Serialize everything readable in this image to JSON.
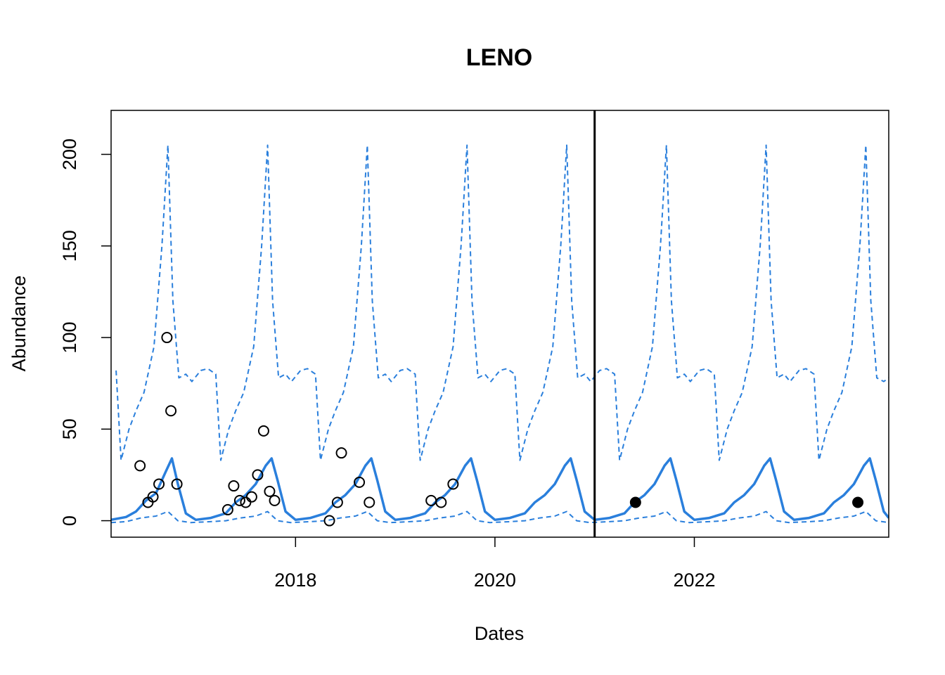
{
  "chart_data": {
    "type": "line",
    "title": "LENO",
    "xlabel": "Dates",
    "ylabel": "Abundance",
    "xlim": [
      2016.15,
      2023.95
    ],
    "ylim": [
      -9,
      224
    ],
    "x_ticks": [
      2018,
      2020,
      2022
    ],
    "x_tick_labels": [
      "2018",
      "2020",
      "2022"
    ],
    "y_ticks": [
      0,
      50,
      100,
      150,
      200
    ],
    "y_tick_labels": [
      "0",
      "50",
      "100",
      "150",
      "200"
    ],
    "grid": false,
    "legend": "none",
    "forecast_start": 2021.0,
    "colors": {
      "series": "#2a7fdc",
      "points": "#000000"
    },
    "series": [
      {
        "role": "mean",
        "style": "solid",
        "x": [
          2016.15,
          2016.3,
          2016.4,
          2016.5,
          2016.6,
          2016.7,
          2016.76,
          2016.82,
          2016.9,
          2017.0,
          2017.15,
          2017.3,
          2017.4,
          2017.5,
          2017.6,
          2017.7,
          2017.76,
          2017.82,
          2017.9,
          2018.0,
          2018.15,
          2018.3,
          2018.4,
          2018.5,
          2018.6,
          2018.7,
          2018.76,
          2018.82,
          2018.9,
          2019.0,
          2019.15,
          2019.3,
          2019.4,
          2019.5,
          2019.6,
          2019.7,
          2019.76,
          2019.82,
          2019.9,
          2020.0,
          2020.15,
          2020.3,
          2020.4,
          2020.5,
          2020.6,
          2020.7,
          2020.76,
          2020.82,
          2020.9,
          2021.0,
          2021.15,
          2021.3,
          2021.4,
          2021.5,
          2021.6,
          2021.7,
          2021.76,
          2021.82,
          2021.9,
          2022.0,
          2022.15,
          2022.3,
          2022.4,
          2022.5,
          2022.6,
          2022.7,
          2022.76,
          2022.82,
          2022.9,
          2023.0,
          2023.15,
          2023.3,
          2023.4,
          2023.5,
          2023.6,
          2023.7,
          2023.76,
          2023.82,
          2023.9,
          2023.95
        ],
        "y": [
          0.5,
          2,
          5,
          11,
          15,
          27,
          34,
          20,
          4,
          0.5,
          1.5,
          4,
          10,
          14,
          20,
          30,
          34,
          22,
          5,
          0.5,
          1.5,
          4,
          10,
          14,
          20,
          30,
          34,
          22,
          5,
          0.5,
          1.5,
          4,
          10,
          14,
          20,
          30,
          34,
          22,
          5,
          0.5,
          1.5,
          4,
          10,
          14,
          20,
          30,
          34,
          22,
          5,
          0.5,
          1.5,
          4,
          10,
          14,
          20,
          30,
          34,
          22,
          5,
          0.5,
          1.5,
          4,
          10,
          14,
          20,
          30,
          34,
          22,
          5,
          0.5,
          1.5,
          4,
          10,
          14,
          20,
          30,
          34,
          22,
          5,
          1.5
        ]
      },
      {
        "role": "upper",
        "style": "dashed",
        "x": [
          2016.2,
          2016.25,
          2016.33,
          2016.4,
          2016.48,
          2016.58,
          2016.66,
          2016.72,
          2016.77,
          2016.83,
          2016.9,
          2016.96,
          2017.05,
          2017.12,
          2017.2,
          2017.25,
          2017.33,
          2017.4,
          2017.48,
          2017.58,
          2017.66,
          2017.72,
          2017.77,
          2017.83,
          2017.9,
          2017.96,
          2018.05,
          2018.12,
          2018.2,
          2018.25,
          2018.33,
          2018.4,
          2018.48,
          2018.58,
          2018.66,
          2018.72,
          2018.77,
          2018.83,
          2018.9,
          2018.96,
          2019.05,
          2019.12,
          2019.2,
          2019.25,
          2019.33,
          2019.4,
          2019.48,
          2019.58,
          2019.66,
          2019.72,
          2019.77,
          2019.83,
          2019.9,
          2019.96,
          2020.05,
          2020.12,
          2020.2,
          2020.25,
          2020.33,
          2020.4,
          2020.48,
          2020.58,
          2020.66,
          2020.72,
          2020.77,
          2020.83,
          2020.9,
          2020.96,
          2021.05,
          2021.12,
          2021.2,
          2021.25,
          2021.33,
          2021.4,
          2021.48,
          2021.58,
          2021.66,
          2021.72,
          2021.77,
          2021.83,
          2021.9,
          2021.96,
          2022.05,
          2022.12,
          2022.2,
          2022.25,
          2022.33,
          2022.4,
          2022.48,
          2022.58,
          2022.66,
          2022.72,
          2022.77,
          2022.83,
          2022.9,
          2022.96,
          2023.05,
          2023.12,
          2023.2,
          2023.25,
          2023.33,
          2023.4,
          2023.48,
          2023.58,
          2023.66,
          2023.72,
          2023.77,
          2023.83,
          2023.9,
          2023.95
        ],
        "y": [
          82,
          33,
          50,
          60,
          70,
          95,
          150,
          205,
          120,
          78,
          80,
          76,
          82,
          83,
          80,
          33,
          50,
          60,
          70,
          95,
          150,
          205,
          120,
          78,
          80,
          76,
          82,
          83,
          80,
          33,
          50,
          60,
          70,
          95,
          150,
          205,
          120,
          78,
          80,
          76,
          82,
          83,
          80,
          33,
          50,
          60,
          70,
          95,
          150,
          205,
          120,
          78,
          80,
          76,
          82,
          83,
          80,
          33,
          50,
          60,
          70,
          95,
          150,
          205,
          120,
          78,
          80,
          76,
          82,
          83,
          80,
          33,
          50,
          60,
          70,
          95,
          150,
          205,
          120,
          78,
          80,
          76,
          82,
          83,
          80,
          33,
          50,
          60,
          70,
          95,
          150,
          205,
          120,
          78,
          80,
          76,
          82,
          83,
          80,
          33,
          50,
          60,
          70,
          95,
          150,
          205,
          120,
          78,
          76,
          78
        ]
      },
      {
        "role": "lower",
        "style": "dashed",
        "x": [
          2016.15,
          2016.3,
          2016.45,
          2016.6,
          2016.72,
          2016.82,
          2016.95,
          2017.15,
          2017.3,
          2017.45,
          2017.6,
          2017.72,
          2017.82,
          2017.95,
          2018.15,
          2018.3,
          2018.45,
          2018.6,
          2018.72,
          2018.82,
          2018.95,
          2019.15,
          2019.3,
          2019.45,
          2019.6,
          2019.72,
          2019.82,
          2019.95,
          2020.15,
          2020.3,
          2020.45,
          2020.6,
          2020.72,
          2020.82,
          2020.95,
          2021.15,
          2021.3,
          2021.45,
          2021.6,
          2021.72,
          2021.82,
          2021.95,
          2022.15,
          2022.3,
          2022.45,
          2022.6,
          2022.72,
          2022.82,
          2022.95,
          2023.15,
          2023.3,
          2023.45,
          2023.6,
          2023.72,
          2023.82,
          2023.95
        ],
        "y": [
          -1,
          -0.5,
          1.5,
          2.5,
          5,
          0,
          -1,
          -0.5,
          0,
          1.5,
          2.5,
          5,
          0,
          -1,
          -0.5,
          0,
          1.5,
          2.5,
          5,
          0,
          -1,
          -0.5,
          0,
          1.5,
          2.5,
          5,
          0,
          -1,
          -0.5,
          0,
          1.5,
          2.5,
          5,
          0,
          -1,
          -0.5,
          0,
          1.5,
          2.5,
          5,
          0,
          -1,
          -0.5,
          0,
          1.5,
          2.5,
          5,
          0,
          -1,
          -0.5,
          0,
          1.5,
          2.5,
          5,
          0,
          -1
        ]
      }
    ],
    "observed_points": {
      "style": "open-circle",
      "x": [
        2016.44,
        2016.52,
        2016.57,
        2016.63,
        2016.71,
        2016.75,
        2016.81,
        2017.32,
        2017.38,
        2017.44,
        2017.5,
        2017.56,
        2017.62,
        2017.68,
        2017.74,
        2017.79,
        2018.34,
        2018.42,
        2018.46,
        2018.64,
        2018.74,
        2019.36,
        2019.46,
        2019.58
      ],
      "y": [
        30,
        10,
        13,
        20,
        100,
        60,
        20,
        6,
        19,
        11,
        10,
        13,
        25,
        49,
        16,
        11,
        0,
        10,
        37,
        21,
        10,
        11,
        10,
        20
      ]
    },
    "test_points": {
      "style": "filled-circle",
      "x": [
        2021.41,
        2023.64
      ],
      "y": [
        10,
        10
      ]
    }
  }
}
